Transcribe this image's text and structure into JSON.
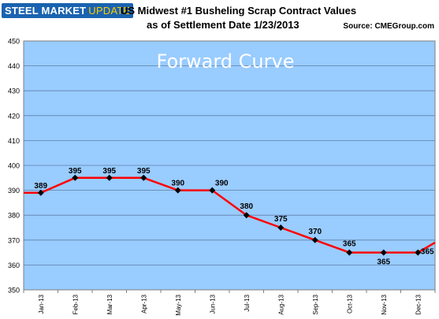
{
  "header": {
    "logo_text": "STEEL MARKET",
    "logo_update": "UPDATE",
    "title_line1": "US Midwest #1 Busheling Scrap Contract Values",
    "title_line2": "as of Settlement Date 1/23/2013",
    "source_label": "Source:",
    "source_value": "CMEGroup.com"
  },
  "colors": {
    "plot_background": "#99ccff",
    "line": "#ff0000",
    "marker": "#000000",
    "gridline": "#5f7fa8",
    "overlay_text": "#ffffff"
  },
  "chart_data": {
    "type": "line",
    "overlay_text": "Forward Curve",
    "categories": [
      "Jan-13",
      "Feb-13",
      "Mar-13",
      "Apr-13",
      "May-13",
      "Jun-13",
      "Jul-13",
      "Aug-13",
      "Sep-13",
      "Oct-13",
      "Nov-13",
      "Dec-13"
    ],
    "series": [
      {
        "values": [
          389,
          395,
          395,
          395,
          390,
          390,
          380,
          375,
          370,
          365,
          365,
          365
        ]
      }
    ],
    "data_labels": [
      "389",
      "395",
      "395",
      "395",
      "390",
      "390",
      "380",
      "375",
      "370",
      "365",
      "365",
      "365"
    ],
    "yticks": [
      350,
      360,
      370,
      380,
      390,
      400,
      410,
      420,
      430,
      440,
      450
    ],
    "ylim": [
      350,
      450
    ],
    "grid": true,
    "legend": "none"
  }
}
